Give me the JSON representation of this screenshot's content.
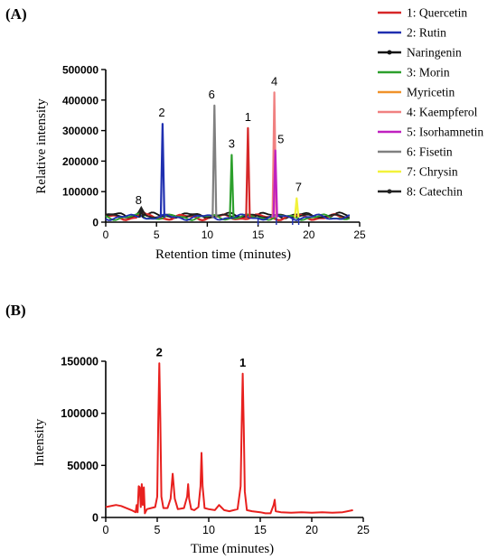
{
  "chart_data": [
    {
      "type": "line",
      "panel_label": "(A)",
      "xlabel": "Retention time (minutes)",
      "ylabel": "Relative intensity",
      "xlim": [
        0,
        25
      ],
      "ylim": [
        0,
        500000
      ],
      "xticks": [
        0,
        5,
        10,
        15,
        20,
        25
      ],
      "yticks": [
        0,
        100000,
        200000,
        300000,
        400000,
        500000
      ],
      "xtick_labels": [
        "0",
        "5",
        "10",
        "15",
        "20",
        "25"
      ],
      "ytick_labels": [
        "0",
        "100000",
        "200000",
        "300000",
        "400000",
        "500000"
      ],
      "legend": "right",
      "series": [
        {
          "name": "1: Quercetin",
          "color": "#d62728",
          "peak_label": "1",
          "peak_x": 14.0,
          "peak_y": 308000
        },
        {
          "name": "2: Rutin",
          "color": "#1f2fb0",
          "peak_label": "2",
          "peak_x": 5.6,
          "peak_y": 322000
        },
        {
          "name": "Naringenin",
          "color": "#111111",
          "peak_label": "",
          "peak_x": 0,
          "peak_y": 0
        },
        {
          "name": "3: Morin",
          "color": "#2ca02c",
          "peak_label": "3",
          "peak_x": 12.4,
          "peak_y": 220000
        },
        {
          "name": "Myricetin",
          "color": "#f0922a",
          "peak_label": "",
          "peak_x": 0,
          "peak_y": 0
        },
        {
          "name": "4: Kaempferol",
          "color": "#f08080",
          "peak_label": "4",
          "peak_x": 16.6,
          "peak_y": 425000
        },
        {
          "name": "5: Isorhamnetin",
          "color": "#c020c0",
          "peak_label": "5",
          "peak_x": 16.7,
          "peak_y": 235000
        },
        {
          "name": "6: Fisetin",
          "color": "#808080",
          "peak_label": "6",
          "peak_x": 10.7,
          "peak_y": 382000
        },
        {
          "name": "7: Chrysin",
          "color": "#f2f23a",
          "peak_label": "7",
          "peak_x": 18.8,
          "peak_y": 78000
        },
        {
          "name": "8: Catechin",
          "color": "#222222",
          "peak_label": "8",
          "peak_x": 3.5,
          "peak_y": 42000
        }
      ]
    },
    {
      "type": "line",
      "panel_label": "(B)",
      "xlabel": "Time (minutes)",
      "ylabel": "Intensity",
      "xlim": [
        0,
        25
      ],
      "ylim": [
        0,
        150000
      ],
      "xticks": [
        0,
        5,
        10,
        15,
        20,
        25
      ],
      "yticks": [
        0,
        50000,
        100000,
        150000
      ],
      "xtick_labels": [
        "0",
        "5",
        "10",
        "15",
        "20",
        "25"
      ],
      "ytick_labels": [
        "0",
        "50000",
        "100000",
        "150000"
      ],
      "color": "#e8201e",
      "peak_labels": [
        {
          "label": "2",
          "x": 5.2,
          "y": 148000
        },
        {
          "label": "1",
          "x": 13.3,
          "y": 138000
        }
      ],
      "series": [
        {
          "name": "",
          "x": [
            0,
            1,
            1.5,
            2.5,
            2.9,
            3.0,
            3.1,
            3.2,
            3.3,
            3.4,
            3.5,
            3.6,
            3.7,
            3.8,
            4.0,
            4.4,
            4.8,
            5.0,
            5.1,
            5.2,
            5.3,
            5.4,
            5.6,
            6.0,
            6.3,
            6.5,
            6.7,
            7.0,
            7.6,
            7.9,
            8.0,
            8.1,
            8.3,
            8.6,
            9.0,
            9.2,
            9.3,
            9.4,
            9.6,
            10.0,
            10.6,
            11.0,
            11.2,
            11.5,
            12.0,
            12.8,
            13.1,
            13.2,
            13.3,
            13.4,
            13.5,
            13.7,
            14.2,
            15.0,
            15.5,
            16.0,
            16.3,
            16.4,
            16.5,
            17.0,
            18.0,
            19.0,
            20.0,
            21.0,
            22.0,
            23.0,
            24.0
          ],
          "y": [
            10000,
            12000,
            11000,
            7000,
            5000,
            12000,
            5000,
            30000,
            29000,
            10000,
            32000,
            12000,
            29000,
            4000,
            8000,
            9000,
            10000,
            20000,
            90000,
            148000,
            95000,
            20000,
            9000,
            9000,
            18000,
            42000,
            18000,
            8000,
            9000,
            20000,
            32000,
            18000,
            8000,
            7000,
            10000,
            30000,
            62000,
            30000,
            9000,
            8000,
            7000,
            12000,
            10000,
            7000,
            6000,
            8000,
            30000,
            90000,
            138000,
            85000,
            25000,
            7000,
            6000,
            5000,
            4000,
            4000,
            12000,
            17000,
            6000,
            5000,
            4500,
            5000,
            4500,
            5000,
            4500,
            5000,
            7000
          ]
        }
      ]
    }
  ]
}
